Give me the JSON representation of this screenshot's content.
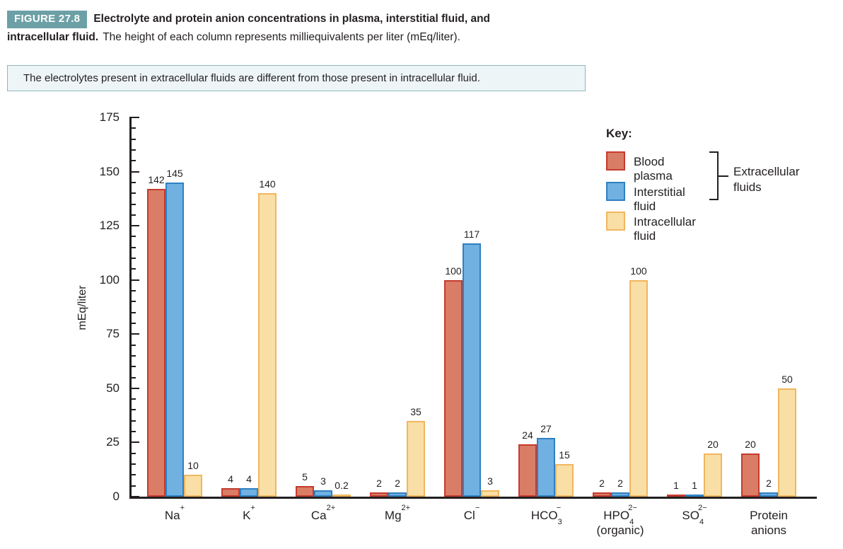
{
  "figure": {
    "badge": "FIGURE 27.8",
    "title_line1": "Electrolyte and protein anion concentrations in plasma, interstitial fluid, and",
    "title_line2_bold": "intracellular fluid.",
    "title_line2_rest": "The height of each column represents milliequivalents per liter (mEq/liter).",
    "callout": "The electrolytes present in extracellular fluids are different from those present in intracellular fluid."
  },
  "key": {
    "title": "Key:",
    "items": [
      {
        "label": "Blood plasma",
        "fill": "#D97D66",
        "border": "#C53B2E"
      },
      {
        "label": "Interstitial fluid",
        "fill": "#70B1E2",
        "border": "#2F80C2"
      },
      {
        "label": "Intracellular fluid",
        "fill": "#F9DFA5",
        "border": "#F1B65F"
      }
    ],
    "bracket_label_1": "Extracellular",
    "bracket_label_2": "fluids"
  },
  "chart_data": {
    "type": "bar",
    "title": "Electrolyte and protein anion concentrations in plasma, interstitial fluid, and intracellular fluid",
    "ylabel": "mEq/liter",
    "ylim": [
      0,
      175
    ],
    "ytick_major_step": 25,
    "ytick_minor_step": 5,
    "grid": false,
    "legend_position": "top-right",
    "axis_color": "#231f20",
    "categories": [
      {
        "segments": [
          {
            "t": "Na"
          },
          {
            "t": "+",
            "s": "sup"
          }
        ]
      },
      {
        "segments": [
          {
            "t": "K"
          },
          {
            "t": "+",
            "s": "sup"
          }
        ]
      },
      {
        "segments": [
          {
            "t": "Ca"
          },
          {
            "t": "2+",
            "s": "sup"
          }
        ]
      },
      {
        "segments": [
          {
            "t": "Mg"
          },
          {
            "t": "2+",
            "s": "sup"
          }
        ]
      },
      {
        "segments": [
          {
            "t": "Cl"
          },
          {
            "t": "−",
            "s": "sup"
          }
        ]
      },
      {
        "segments": [
          {
            "t": "HCO"
          },
          {
            "t": "3",
            "s": "sub"
          },
          {
            "t": "−",
            "s": "sup"
          }
        ]
      },
      {
        "segments": [
          {
            "t": "HPO"
          },
          {
            "t": "4",
            "s": "sub"
          },
          {
            "t": "2−",
            "s": "sup"
          }
        ],
        "line2": "(organic)"
      },
      {
        "segments": [
          {
            "t": "SO"
          },
          {
            "t": "4",
            "s": "sub"
          },
          {
            "t": "2−",
            "s": "sup"
          }
        ]
      },
      {
        "segments": [
          {
            "t": "Protein"
          }
        ],
        "line2": "anions"
      }
    ],
    "series": [
      {
        "name": "Blood plasma",
        "fill": "#D97D66",
        "border": "#C53B2E",
        "values": [
          142,
          4,
          5,
          2,
          100,
          24,
          2,
          1,
          20
        ],
        "labels": [
          "142",
          "4",
          "5",
          "2",
          "100",
          "24",
          "2",
          "1",
          "20"
        ]
      },
      {
        "name": "Interstitial fluid",
        "fill": "#70B1E2",
        "border": "#2F80C2",
        "values": [
          145,
          4,
          3,
          2,
          117,
          27,
          2,
          1,
          2
        ],
        "labels": [
          "145",
          "4",
          "3",
          "2",
          "117",
          "27",
          "2",
          "1",
          "2"
        ]
      },
      {
        "name": "Intracellular fluid",
        "fill": "#F9DFA5",
        "border": "#F1B65F",
        "values": [
          10,
          140,
          0.2,
          35,
          3,
          15,
          100,
          20,
          50
        ],
        "labels": [
          "10",
          "140",
          "0.2",
          "35",
          "3",
          "15",
          "100",
          "20",
          "50"
        ]
      }
    ]
  }
}
